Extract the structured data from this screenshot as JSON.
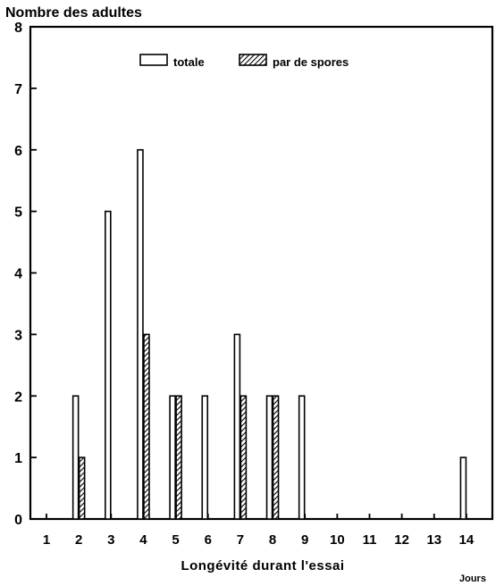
{
  "chart_data": {
    "type": "bar",
    "ylabel": "Nombre des adultes",
    "xlabel": "Longévité durant l'essai",
    "x_unit": "Jours",
    "categories": [
      "1",
      "2",
      "3",
      "4",
      "5",
      "6",
      "7",
      "8",
      "9",
      "10",
      "11",
      "12",
      "13",
      "14"
    ],
    "ylim": [
      0,
      8
    ],
    "yticks": [
      0,
      1,
      2,
      3,
      4,
      5,
      6,
      7,
      8
    ],
    "grid": false,
    "legend_position": "top-center",
    "series": [
      {
        "name": "totale",
        "pattern": "empty",
        "values": [
          0,
          2,
          5,
          6,
          2,
          2,
          3,
          2,
          2,
          0,
          0,
          0,
          0,
          1
        ]
      },
      {
        "name": "par de spores",
        "pattern": "hatched",
        "values": [
          0,
          1,
          0,
          3,
          2,
          0,
          2,
          2,
          0,
          0,
          0,
          0,
          0,
          0
        ]
      }
    ],
    "colors": {
      "ink": "#000000",
      "background": "#ffffff"
    }
  }
}
